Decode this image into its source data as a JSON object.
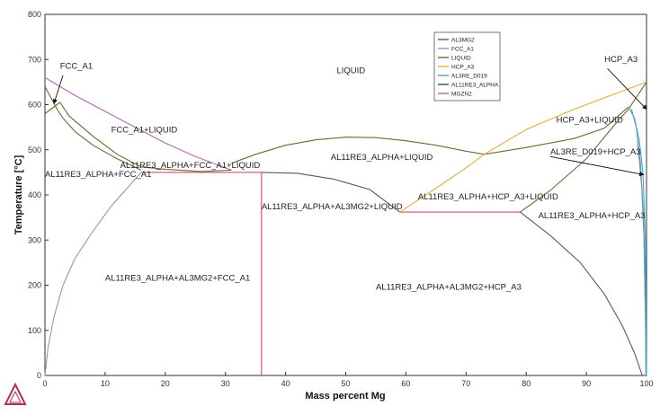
{
  "chart_data": {
    "type": "line",
    "xlabel": "Mass percent Mg",
    "ylabel": "Temperature [°C]",
    "xlim": [
      0,
      100
    ],
    "ylim": [
      0,
      800
    ],
    "xticks": [
      0,
      10,
      20,
      30,
      40,
      50,
      60,
      70,
      80,
      90,
      100
    ],
    "yticks": [
      0,
      100,
      200,
      300,
      400,
      500,
      600,
      700,
      800
    ],
    "grid": false,
    "legend_position": "top-right",
    "legend": [
      {
        "name": "AL3MG2",
        "color": "#555a68"
      },
      {
        "name": "FCC_A1",
        "color": "#8a9ab8"
      },
      {
        "name": "LIQUID",
        "color": "#6a6a32"
      },
      {
        "name": "HCP_A3",
        "color": "#e0b040"
      },
      {
        "name": "AL3RE_D019",
        "color": "#50a0c0"
      },
      {
        "name": "AL11RE3_ALPHA",
        "color": "#40465a"
      },
      {
        "name": "MGZN2",
        "color": "#b06ab4"
      }
    ],
    "series": [
      {
        "color": "#b06ab4",
        "points": [
          [
            0,
            660
          ],
          [
            5,
            620
          ],
          [
            10,
            585
          ],
          [
            15,
            550
          ],
          [
            20,
            515
          ],
          [
            25,
            485
          ],
          [
            30,
            460
          ],
          [
            31,
            455
          ]
        ]
      },
      {
        "color": "#6a6a32",
        "points": [
          [
            0,
            580
          ],
          [
            1,
            590
          ],
          [
            2.5,
            605
          ],
          [
            4,
            575
          ],
          [
            8,
            530
          ],
          [
            12,
            490
          ],
          [
            16,
            462
          ],
          [
            20,
            457
          ],
          [
            26,
            452
          ],
          [
            31,
            455
          ]
        ]
      },
      {
        "color": "#6a6a32",
        "points": [
          [
            0,
            640
          ],
          [
            1,
            615
          ],
          [
            2,
            590
          ],
          [
            3,
            570
          ],
          [
            5,
            540
          ],
          [
            8,
            510
          ],
          [
            12,
            480
          ],
          [
            16,
            455
          ]
        ]
      },
      {
        "color": "#8a9ab8",
        "points": [
          [
            0,
            0
          ],
          [
            0.5,
            60
          ],
          [
            1.5,
            130
          ],
          [
            3,
            200
          ],
          [
            5,
            260
          ],
          [
            8,
            320
          ],
          [
            11,
            375
          ],
          [
            14,
            420
          ],
          [
            16,
            450
          ]
        ]
      },
      {
        "color": "#6a6a32",
        "points": [
          [
            31,
            470
          ],
          [
            35,
            490
          ],
          [
            40,
            510
          ],
          [
            45,
            522
          ],
          [
            50,
            528
          ],
          [
            55,
            527
          ],
          [
            60,
            520
          ],
          [
            65,
            510
          ],
          [
            70,
            497
          ],
          [
            73,
            490
          ],
          [
            80,
            505
          ],
          [
            88,
            525
          ],
          [
            93,
            548
          ],
          [
            97,
            595
          ]
        ]
      },
      {
        "color": "#555a68",
        "points": [
          [
            36,
            450
          ],
          [
            42,
            448
          ],
          [
            48,
            435
          ],
          [
            54,
            412
          ],
          [
            59,
            362
          ]
        ]
      },
      {
        "color": "#e0b040",
        "points": [
          [
            59,
            362
          ],
          [
            65,
            415
          ],
          [
            70,
            460
          ],
          [
            73,
            490
          ],
          [
            80,
            545
          ],
          [
            88,
            590
          ],
          [
            94,
            620
          ],
          [
            100,
            650
          ]
        ]
      },
      {
        "color": "#6a6a32",
        "points": [
          [
            79,
            362
          ],
          [
            84,
            410
          ],
          [
            90,
            480
          ],
          [
            95,
            560
          ],
          [
            97,
            590
          ],
          [
            100,
            650
          ]
        ]
      },
      {
        "color": "#555a68",
        "points": [
          [
            79,
            362
          ],
          [
            84,
            310
          ],
          [
            89,
            250
          ],
          [
            93,
            180
          ],
          [
            96,
            110
          ],
          [
            98,
            50
          ],
          [
            99.3,
            0
          ]
        ]
      },
      {
        "color": "#50a0c0",
        "points": [
          [
            97,
            595
          ],
          [
            98,
            570
          ],
          [
            98.8,
            520
          ],
          [
            99.4,
            450
          ],
          [
            99.8,
            300
          ],
          [
            100,
            0
          ]
        ]
      },
      {
        "color": "#50a0c0",
        "points": [
          [
            97.5,
            590
          ],
          [
            98.3,
            550
          ],
          [
            99,
            470
          ],
          [
            99.5,
            350
          ],
          [
            99.8,
            150
          ],
          [
            99.9,
            0
          ]
        ]
      },
      {
        "color": "#50a0c0",
        "points": [
          [
            98.5,
            520
          ],
          [
            99.2,
            420
          ],
          [
            99.6,
            300
          ],
          [
            99.85,
            100
          ],
          [
            99.95,
            0
          ]
        ]
      },
      {
        "color": "#c8506a",
        "points": [
          [
            16,
            450
          ],
          [
            36,
            450
          ]
        ]
      },
      {
        "color": "#c8506a",
        "points": [
          [
            36,
            450
          ],
          [
            36,
            0
          ]
        ]
      },
      {
        "color": "#c8506a",
        "points": [
          [
            59,
            362
          ],
          [
            79,
            362
          ]
        ]
      }
    ],
    "annotations": [
      {
        "text": "FCC_A1",
        "x": 2.5,
        "y": 680
      },
      {
        "text": "LIQUID",
        "x": 48.5,
        "y": 670
      },
      {
        "text": "HCP_A3",
        "x": 93,
        "y": 695
      },
      {
        "text": "FCC_A1+LIQUID",
        "x": 11,
        "y": 538
      },
      {
        "text": "HCP_A3+LIQUID",
        "x": 85,
        "y": 560
      },
      {
        "text": "AL11RE3_ALPHA+FCC_A1+LIQUID",
        "x": 12.5,
        "y": 460
      },
      {
        "text": "AL11RE3_ALPHA+LIQUID",
        "x": 47.5,
        "y": 478
      },
      {
        "text": "AL3RE_D019+HCP_A3",
        "x": 84,
        "y": 490
      },
      {
        "text": "AL11RE3_ALPHA+FCC_A1",
        "x": 0,
        "y": 440
      },
      {
        "text": "AL11RE3_ALPHA+HCP_A3+LIQUID",
        "x": 62,
        "y": 390
      },
      {
        "text": "AL11RE3_ALPHA+AL3MG2+LIQUID",
        "x": 36,
        "y": 368
      },
      {
        "text": "AL11RE3_ALPHA+HCP_A3",
        "x": 82,
        "y": 348
      },
      {
        "text": "AL11RE3_ALPHA+AL3MG2+FCC_A1",
        "x": 10,
        "y": 210
      },
      {
        "text": "AL11RE3_ALPHA+AL3MG2+HCP_A3",
        "x": 55,
        "y": 190
      }
    ],
    "arrows": [
      {
        "from": [
          3,
          665
        ],
        "to": [
          1.5,
          603
        ]
      },
      {
        "from": [
          93.5,
          680
        ],
        "to": [
          100,
          590
        ]
      },
      {
        "from": [
          84,
          485
        ],
        "to": [
          99.5,
          445
        ]
      }
    ]
  }
}
